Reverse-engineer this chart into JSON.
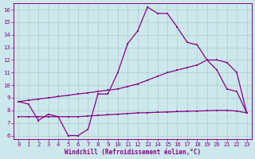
{
  "xlabel": "Windchill (Refroidissement éolien,°C)",
  "bg_color": "#cde8ec",
  "grid_color": "#aacccc",
  "line_color": "#880088",
  "xlim_min": -0.5,
  "xlim_max": 23.5,
  "ylim_min": 5.7,
  "ylim_max": 16.5,
  "xticks": [
    0,
    1,
    2,
    3,
    4,
    5,
    6,
    7,
    8,
    9,
    10,
    11,
    12,
    13,
    14,
    15,
    16,
    17,
    18,
    19,
    20,
    21,
    22,
    23
  ],
  "yticks": [
    6,
    7,
    8,
    9,
    10,
    11,
    12,
    13,
    14,
    15,
    16
  ],
  "curve1_x": [
    0,
    1,
    2,
    3,
    4,
    5,
    6,
    7,
    8,
    9,
    10,
    11,
    12,
    13,
    14,
    15,
    16,
    17,
    18,
    19,
    20,
    21,
    22,
    23
  ],
  "curve1_y": [
    8.7,
    8.5,
    7.2,
    7.7,
    7.5,
    6.0,
    6.0,
    6.5,
    9.3,
    9.3,
    11.0,
    13.3,
    14.3,
    16.2,
    15.7,
    15.7,
    14.6,
    13.4,
    13.2,
    12.0,
    11.2,
    9.7,
    9.5,
    7.8
  ],
  "curve2_x": [
    0,
    1,
    2,
    3,
    4,
    5,
    6,
    7,
    8,
    9,
    10,
    11,
    12,
    13,
    14,
    15,
    16,
    17,
    18,
    19,
    20,
    21,
    22,
    23
  ],
  "curve2_y": [
    8.7,
    8.8,
    8.9,
    9.0,
    9.1,
    9.2,
    9.3,
    9.4,
    9.5,
    9.6,
    9.7,
    9.9,
    10.1,
    10.4,
    10.7,
    11.0,
    11.2,
    11.4,
    11.6,
    12.0,
    12.0,
    11.8,
    11.0,
    7.8
  ],
  "curve3_x": [
    0,
    1,
    2,
    3,
    4,
    5,
    6,
    7,
    8,
    9,
    10,
    11,
    12,
    13,
    14,
    15,
    16,
    17,
    18,
    19,
    20,
    21,
    22,
    23
  ],
  "curve3_y": [
    7.5,
    7.5,
    7.5,
    7.5,
    7.5,
    7.5,
    7.5,
    7.55,
    7.6,
    7.65,
    7.7,
    7.75,
    7.8,
    7.82,
    7.85,
    7.87,
    7.9,
    7.93,
    7.95,
    7.97,
    8.0,
    8.0,
    7.95,
    7.8
  ],
  "marker_size": 2.0,
  "lw": 0.9,
  "tick_fs": 5.2,
  "label_fs": 5.5
}
